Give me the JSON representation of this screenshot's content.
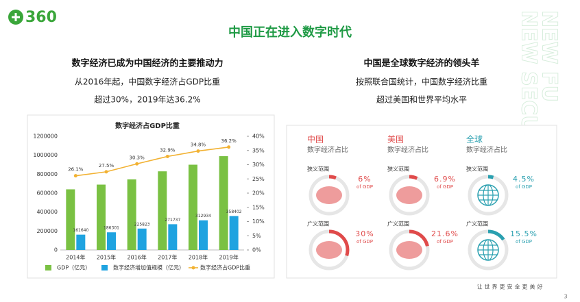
{
  "header": {
    "logo": "360",
    "title": "中国正在进入数字时代"
  },
  "left": {
    "heading": "数字经济已成为中国经济的主要推动力",
    "lines": [
      "从2016年起，中国数字经济占GDP比重",
      "超过30%，2019年达36.2%"
    ]
  },
  "right": {
    "heading": "中国是全球数字经济的领头羊",
    "lines": [
      "按照联合国统计，中国数字经济比重",
      "超过美国和世界平均水平"
    ]
  },
  "chart_data": {
    "type": "bar",
    "title": "数字经济占GDP比重",
    "categories": [
      "2014年",
      "2015年",
      "2016年",
      "2017年",
      "2018年",
      "2019年"
    ],
    "series": [
      {
        "name": "GDP（亿元）",
        "color": "#7ac143",
        "values": [
          640000,
          690000,
          745000,
          830000,
          900000,
          990000
        ]
      },
      {
        "name": "数字经济增加值规模（亿元）",
        "color": "#1fa3e0",
        "values": [
          161640,
          186301,
          225823,
          271737,
          312934,
          358402
        ]
      },
      {
        "name": "数字经济占GDP比重",
        "color": "#f2b233",
        "axis": "y2",
        "type": "line",
        "values": [
          26.1,
          27.5,
          30.3,
          32.9,
          34.8,
          36.2
        ],
        "value_labels": [
          "26.1%",
          "27.5%",
          "30.3%",
          "32.9%",
          "34.8%",
          "36.2%"
        ]
      }
    ],
    "ylim": [
      0,
      1200000
    ],
    "yticks": [
      0,
      200000,
      400000,
      600000,
      800000,
      1000000,
      1200000
    ],
    "y2lim": [
      0,
      40
    ],
    "y2ticks": [
      {
        "value": 0,
        "label": "0%"
      },
      {
        "value": 5,
        "label": "5%"
      },
      {
        "value": 10,
        "label": "10%"
      },
      {
        "value": 15,
        "label": "15%"
      },
      {
        "value": 20,
        "label": "20%"
      },
      {
        "value": 25,
        "label": "25%"
      },
      {
        "value": 30,
        "label": "30%"
      },
      {
        "value": 35,
        "label": "35%"
      },
      {
        "value": 40,
        "label": "40%"
      }
    ],
    "grid": false,
    "legend": "bottom"
  },
  "panel": {
    "columns": [
      {
        "name": "中国",
        "subtitle": "数字经济占比",
        "color": "#e04a4a",
        "rows": [
          {
            "scope": "狭义范围",
            "value": 6,
            "label": "6%",
            "unit": "of GDP"
          },
          {
            "scope": "广义范围",
            "value": 30,
            "label": "30%",
            "unit": "of GDP"
          }
        ]
      },
      {
        "name": "美国",
        "subtitle": "数字经济占比",
        "color": "#e04a4a",
        "rows": [
          {
            "scope": "狭义范围",
            "value": 6.9,
            "label": "6.9%",
            "unit": "of GDP"
          },
          {
            "scope": "广义范围",
            "value": 21.6,
            "label": "21.6%",
            "unit": "of GDP"
          }
        ]
      },
      {
        "name": "全球",
        "subtitle": "数字经济占比",
        "color": "#2aa0b0",
        "rows": [
          {
            "scope": "狭义范围",
            "value": 4.5,
            "label": "4.5%",
            "unit": "of GDP"
          },
          {
            "scope": "广义范围",
            "value": 15.5,
            "label": "15.5%",
            "unit": "of GDP"
          }
        ]
      }
    ]
  },
  "watermark": [
    "NEW SECURITY",
    "NEW FU"
  ],
  "footer": {
    "slogan": "让世界更安全更美好",
    "page": "3"
  }
}
